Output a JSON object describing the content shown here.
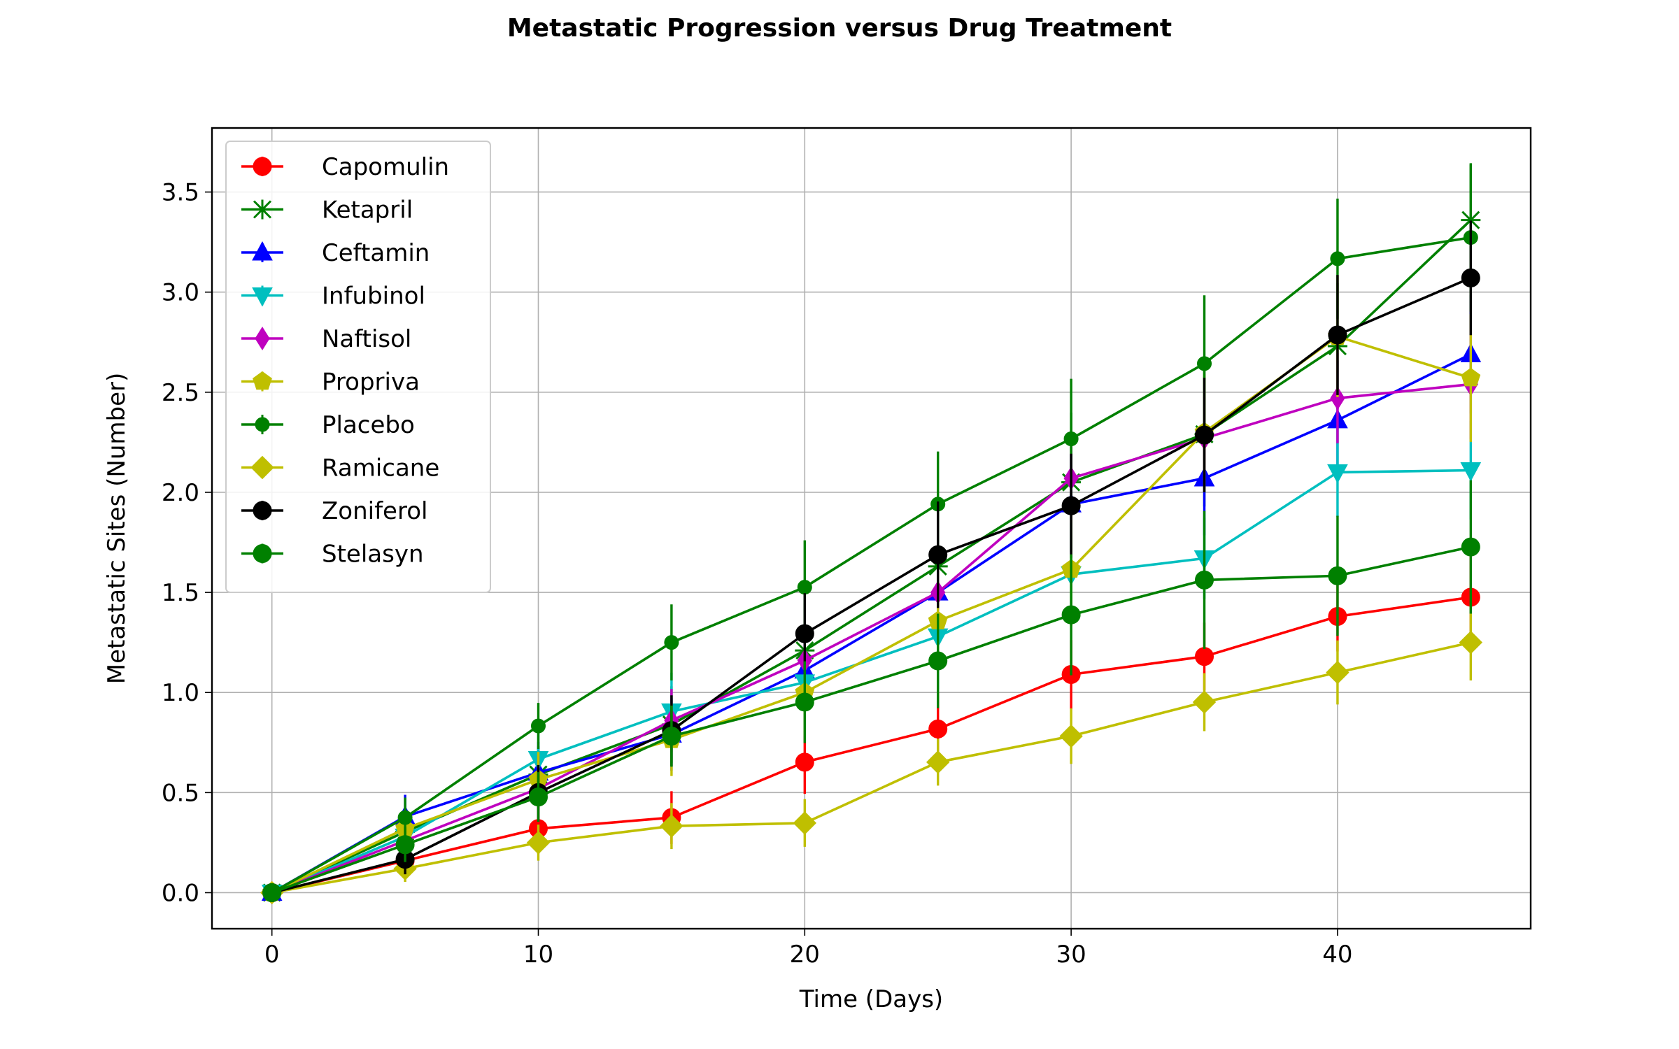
{
  "chart_data": {
    "type": "line",
    "title": "Metastatic Progression versus Drug Treatment",
    "xlabel": "Time (Days)",
    "ylabel": "Metastatic Sites (Number)",
    "xlim": [
      -2.25,
      47.25
    ],
    "ylim": [
      -0.18,
      3.82
    ],
    "xticks": [
      0,
      10,
      20,
      30,
      40
    ],
    "xtick_labels": [
      "0",
      "10",
      "20",
      "30",
      "40"
    ],
    "yticks": [
      0.0,
      0.5,
      1.0,
      1.5,
      2.0,
      2.5,
      3.0,
      3.5
    ],
    "ytick_labels": [
      "0.0",
      "0.5",
      "1.0",
      "1.5",
      "2.0",
      "2.5",
      "3.0",
      "3.5"
    ],
    "grid": true,
    "legend_position": "top-left",
    "x": [
      0,
      5,
      10,
      15,
      20,
      25,
      30,
      35,
      40,
      45
    ],
    "series": [
      {
        "name": "Capomulin",
        "color": "#ff0000",
        "marker": "circle",
        "values": [
          0.0,
          0.16,
          0.32,
          0.375,
          0.652,
          0.818,
          1.09,
          1.18,
          1.38,
          1.476
        ],
        "errors": [
          0.0,
          0.074,
          0.125,
          0.132,
          0.158,
          0.182,
          0.172,
          0.169,
          0.175,
          0.202
        ]
      },
      {
        "name": "Ketapril",
        "color": "#008000",
        "marker": "x",
        "values": [
          0.0,
          0.304,
          0.59,
          0.84,
          1.21,
          1.63,
          2.05,
          2.29,
          2.73,
          3.36
        ],
        "errors": [
          0.0,
          0.098,
          0.142,
          0.191,
          0.236,
          0.288,
          0.348,
          0.361,
          0.315,
          0.278
        ]
      },
      {
        "name": "Ceftamin",
        "color": "#0000ff",
        "marker": "triangle-up",
        "values": [
          0.0,
          0.38,
          0.6,
          0.79,
          1.11,
          1.5,
          1.94,
          2.07,
          2.36,
          2.69
        ],
        "errors": [
          0.0,
          0.109,
          0.153,
          0.181,
          0.194,
          0.235,
          0.248,
          0.285,
          0.299,
          0.296
        ]
      },
      {
        "name": "Infubinol",
        "color": "#00bfbf",
        "marker": "triangle-down",
        "values": [
          0.0,
          0.28,
          0.667,
          0.905,
          1.05,
          1.28,
          1.59,
          1.67,
          2.1,
          2.11
        ],
        "errors": [
          0.0,
          0.091,
          0.159,
          0.194,
          0.234,
          0.265,
          0.256,
          0.203,
          0.223,
          0.246
        ]
      },
      {
        "name": "Naftisol",
        "color": "#bf00bf",
        "marker": "diamond-thin",
        "values": [
          0.0,
          0.26,
          0.52,
          0.86,
          1.16,
          1.5,
          2.07,
          2.27,
          2.47,
          2.54
        ],
        "errors": [
          0.0,
          0.093,
          0.163,
          0.158,
          0.181,
          0.19,
          0.21,
          0.207,
          0.225,
          0.275
        ]
      },
      {
        "name": "Propriva",
        "color": "#bfbf00",
        "marker": "pentagon",
        "values": [
          0.0,
          0.32,
          0.565,
          0.764,
          1.0,
          1.357,
          1.615,
          2.3,
          2.778,
          2.571
        ],
        "errors": [
          0.0,
          0.103,
          0.138,
          0.181,
          0.215,
          0.249,
          0.283,
          0.29,
          0.303,
          0.319
        ]
      },
      {
        "name": "Placebo",
        "color": "#008000",
        "marker": "circle-small",
        "values": [
          0.0,
          0.375,
          0.833,
          1.25,
          1.526,
          1.941,
          2.267,
          2.643,
          3.167,
          3.273
        ],
        "errors": [
          0.0,
          0.1,
          0.115,
          0.19,
          0.234,
          0.263,
          0.3,
          0.341,
          0.3,
          0.371
        ]
      },
      {
        "name": "Ramicane",
        "color": "#bfbf00",
        "marker": "diamond",
        "values": [
          0.0,
          0.12,
          0.25,
          0.333,
          0.348,
          0.652,
          0.782,
          0.952,
          1.1,
          1.25
        ],
        "errors": [
          0.0,
          0.066,
          0.09,
          0.115,
          0.119,
          0.117,
          0.139,
          0.145,
          0.16,
          0.19
        ]
      },
      {
        "name": "Zoniferol",
        "color": "#000000",
        "marker": "circle",
        "values": [
          0.0,
          0.167,
          0.5,
          0.81,
          1.294,
          1.688,
          1.933,
          2.286,
          2.786,
          3.071
        ],
        "errors": [
          0.0,
          0.075,
          0.138,
          0.176,
          0.202,
          0.266,
          0.26,
          0.286,
          0.3,
          0.286
        ]
      },
      {
        "name": "Stelasyn",
        "color": "#008000",
        "marker": "circle",
        "values": [
          0.0,
          0.24,
          0.478,
          0.782,
          0.952,
          1.158,
          1.388,
          1.562,
          1.583,
          1.727
        ],
        "errors": [
          0.0,
          0.087,
          0.124,
          0.153,
          0.204,
          0.236,
          0.302,
          0.345,
          0.3,
          0.333
        ]
      }
    ]
  }
}
